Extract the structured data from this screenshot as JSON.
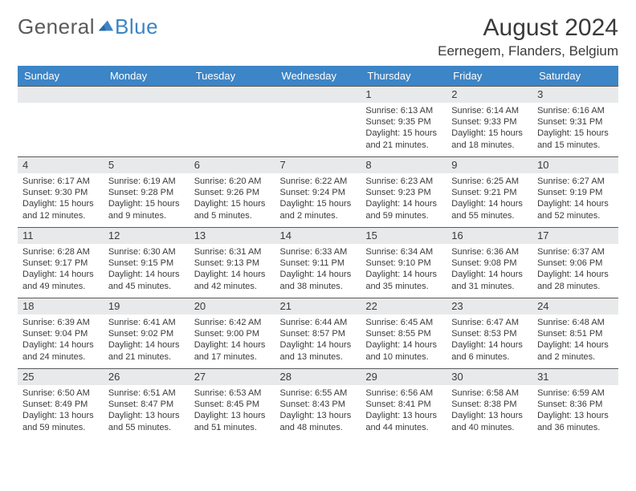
{
  "brand": {
    "part1": "General",
    "part2": "Blue"
  },
  "title": "August 2024",
  "location": "Eernegem, Flanders, Belgium",
  "colors": {
    "header_band": "#3c85c6",
    "daynum_band": "#e8e9ea",
    "rule": "#5a5a5a",
    "text": "#3a3a3a",
    "brand_gray": "#5a5a5a",
    "brand_blue": "#3c85c6",
    "background": "#ffffff"
  },
  "dayHeaders": [
    "Sunday",
    "Monday",
    "Tuesday",
    "Wednesday",
    "Thursday",
    "Friday",
    "Saturday"
  ],
  "weeks": [
    [
      null,
      null,
      null,
      null,
      {
        "n": "1",
        "sr": "6:13 AM",
        "ss": "9:35 PM",
        "dl": "15 hours and 21 minutes."
      },
      {
        "n": "2",
        "sr": "6:14 AM",
        "ss": "9:33 PM",
        "dl": "15 hours and 18 minutes."
      },
      {
        "n": "3",
        "sr": "6:16 AM",
        "ss": "9:31 PM",
        "dl": "15 hours and 15 minutes."
      }
    ],
    [
      {
        "n": "4",
        "sr": "6:17 AM",
        "ss": "9:30 PM",
        "dl": "15 hours and 12 minutes."
      },
      {
        "n": "5",
        "sr": "6:19 AM",
        "ss": "9:28 PM",
        "dl": "15 hours and 9 minutes."
      },
      {
        "n": "6",
        "sr": "6:20 AM",
        "ss": "9:26 PM",
        "dl": "15 hours and 5 minutes."
      },
      {
        "n": "7",
        "sr": "6:22 AM",
        "ss": "9:24 PM",
        "dl": "15 hours and 2 minutes."
      },
      {
        "n": "8",
        "sr": "6:23 AM",
        "ss": "9:23 PM",
        "dl": "14 hours and 59 minutes."
      },
      {
        "n": "9",
        "sr": "6:25 AM",
        "ss": "9:21 PM",
        "dl": "14 hours and 55 minutes."
      },
      {
        "n": "10",
        "sr": "6:27 AM",
        "ss": "9:19 PM",
        "dl": "14 hours and 52 minutes."
      }
    ],
    [
      {
        "n": "11",
        "sr": "6:28 AM",
        "ss": "9:17 PM",
        "dl": "14 hours and 49 minutes."
      },
      {
        "n": "12",
        "sr": "6:30 AM",
        "ss": "9:15 PM",
        "dl": "14 hours and 45 minutes."
      },
      {
        "n": "13",
        "sr": "6:31 AM",
        "ss": "9:13 PM",
        "dl": "14 hours and 42 minutes."
      },
      {
        "n": "14",
        "sr": "6:33 AM",
        "ss": "9:11 PM",
        "dl": "14 hours and 38 minutes."
      },
      {
        "n": "15",
        "sr": "6:34 AM",
        "ss": "9:10 PM",
        "dl": "14 hours and 35 minutes."
      },
      {
        "n": "16",
        "sr": "6:36 AM",
        "ss": "9:08 PM",
        "dl": "14 hours and 31 minutes."
      },
      {
        "n": "17",
        "sr": "6:37 AM",
        "ss": "9:06 PM",
        "dl": "14 hours and 28 minutes."
      }
    ],
    [
      {
        "n": "18",
        "sr": "6:39 AM",
        "ss": "9:04 PM",
        "dl": "14 hours and 24 minutes."
      },
      {
        "n": "19",
        "sr": "6:41 AM",
        "ss": "9:02 PM",
        "dl": "14 hours and 21 minutes."
      },
      {
        "n": "20",
        "sr": "6:42 AM",
        "ss": "9:00 PM",
        "dl": "14 hours and 17 minutes."
      },
      {
        "n": "21",
        "sr": "6:44 AM",
        "ss": "8:57 PM",
        "dl": "14 hours and 13 minutes."
      },
      {
        "n": "22",
        "sr": "6:45 AM",
        "ss": "8:55 PM",
        "dl": "14 hours and 10 minutes."
      },
      {
        "n": "23",
        "sr": "6:47 AM",
        "ss": "8:53 PM",
        "dl": "14 hours and 6 minutes."
      },
      {
        "n": "24",
        "sr": "6:48 AM",
        "ss": "8:51 PM",
        "dl": "14 hours and 2 minutes."
      }
    ],
    [
      {
        "n": "25",
        "sr": "6:50 AM",
        "ss": "8:49 PM",
        "dl": "13 hours and 59 minutes."
      },
      {
        "n": "26",
        "sr": "6:51 AM",
        "ss": "8:47 PM",
        "dl": "13 hours and 55 minutes."
      },
      {
        "n": "27",
        "sr": "6:53 AM",
        "ss": "8:45 PM",
        "dl": "13 hours and 51 minutes."
      },
      {
        "n": "28",
        "sr": "6:55 AM",
        "ss": "8:43 PM",
        "dl": "13 hours and 48 minutes."
      },
      {
        "n": "29",
        "sr": "6:56 AM",
        "ss": "8:41 PM",
        "dl": "13 hours and 44 minutes."
      },
      {
        "n": "30",
        "sr": "6:58 AM",
        "ss": "8:38 PM",
        "dl": "13 hours and 40 minutes."
      },
      {
        "n": "31",
        "sr": "6:59 AM",
        "ss": "8:36 PM",
        "dl": "13 hours and 36 minutes."
      }
    ]
  ],
  "labels": {
    "sunrise": "Sunrise:",
    "sunset": "Sunset:",
    "daylight": "Daylight:"
  }
}
